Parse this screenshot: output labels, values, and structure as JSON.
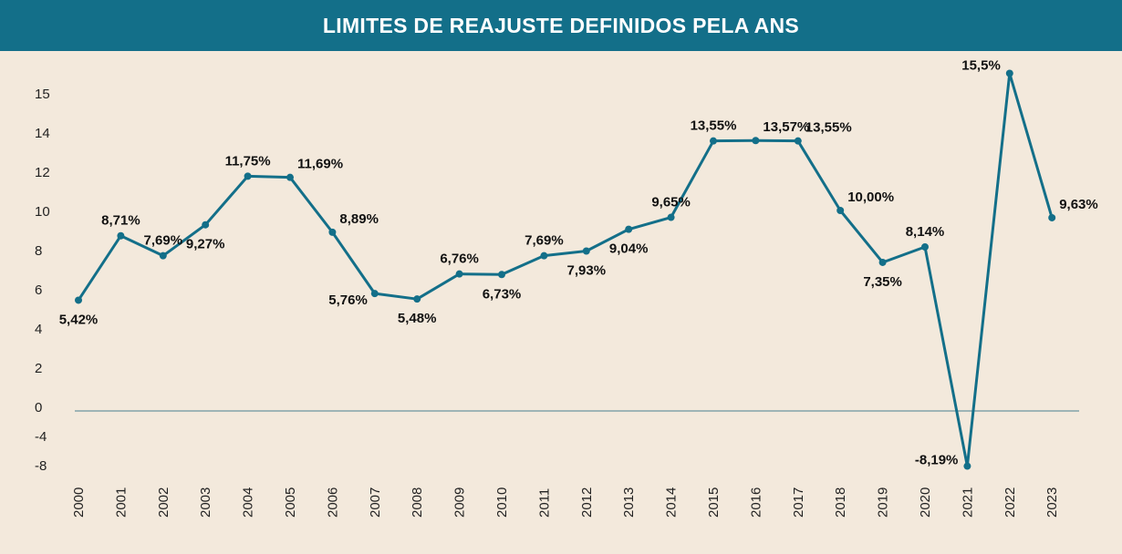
{
  "chart_data": {
    "type": "line",
    "title": "LIMITES DE REAJUSTE DEFINIDOS PELA ANS",
    "xlabel": "",
    "ylabel": "",
    "categories": [
      "2000",
      "2001",
      "2002",
      "2003",
      "2004",
      "2005",
      "2006",
      "2007",
      "2008",
      "2009",
      "2010",
      "2011",
      "2012",
      "2013",
      "2014",
      "2015",
      "2016",
      "2017",
      "2018",
      "2019",
      "2020",
      "2021",
      "2022",
      "2023"
    ],
    "series": [
      {
        "values": [
          5.42,
          8.71,
          7.69,
          9.27,
          11.75,
          11.69,
          8.89,
          5.76,
          5.48,
          6.76,
          6.73,
          7.69,
          7.93,
          9.04,
          9.65,
          13.55,
          13.57,
          13.55,
          10.0,
          7.35,
          8.14,
          -8.19,
          15.5,
          9.63
        ],
        "labels": [
          "5,42%",
          "8,71%",
          "7,69%",
          "9,27%",
          "11,75%",
          "11,69%",
          "8,89%",
          "5,76%",
          "5,48%",
          "6,76%",
          "6,73%",
          "7,69%",
          "7,93%",
          "9,04%",
          "9,65%",
          "13,55%",
          "13,57%",
          "13,55%",
          "10,00%",
          "7,35%",
          "8,14%",
          "-8,19%",
          "15,5%",
          "9,63%"
        ]
      }
    ],
    "yticks": [
      15,
      14,
      12,
      10,
      8,
      6,
      4,
      2,
      0,
      -4,
      -8
    ],
    "ytick_labels": [
      "15",
      "14",
      "12",
      "10",
      "8",
      "6",
      "4",
      "2",
      "0",
      "-4",
      "-8"
    ],
    "grid": false,
    "colors": {
      "line": "#136f89",
      "header": "#136f89",
      "background": "#f3e9dc"
    }
  }
}
